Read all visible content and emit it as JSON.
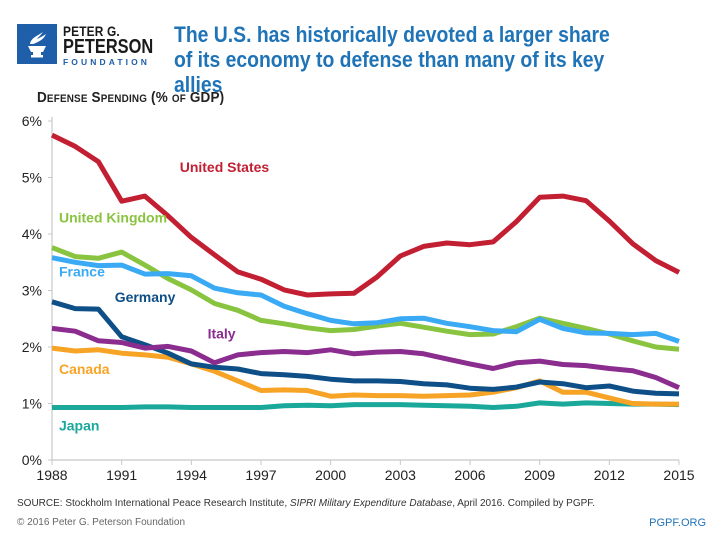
{
  "header": {
    "logo": {
      "line1": "PETER G.",
      "line2": "PETERSON",
      "line3": "FOUNDATION",
      "icon": "torch-icon",
      "color": "#1f5ea8"
    },
    "title": "The U.S. has historically devoted a larger share of its economy to defense than many of its key allies",
    "title_color": "#1f73b7"
  },
  "chart_data": {
    "type": "line",
    "title": "Defense Spending (% of GDP)",
    "xlabel": "",
    "ylabel": "",
    "ylim": [
      0,
      6
    ],
    "xlim": [
      1988,
      2015
    ],
    "yticks": [
      0,
      1,
      2,
      3,
      4,
      5,
      6
    ],
    "ytick_labels": [
      "0%",
      "1%",
      "2%",
      "3%",
      "4%",
      "5%",
      "6%"
    ],
    "xticks": [
      1988,
      1991,
      1994,
      1997,
      2000,
      2003,
      2006,
      2009,
      2012,
      2015
    ],
    "xtick_labels": [
      "1988",
      "1991",
      "1994",
      "1997",
      "2000",
      "2003",
      "2006",
      "2009",
      "2012",
      "2015"
    ],
    "grid": false,
    "legend": "inline-labels",
    "x": [
      1988,
      1989,
      1990,
      1991,
      1992,
      1993,
      1994,
      1995,
      1996,
      1997,
      1998,
      1999,
      2000,
      2001,
      2002,
      2003,
      2004,
      2005,
      2006,
      2007,
      2008,
      2009,
      2010,
      2011,
      2012,
      2013,
      2014,
      2015
    ],
    "series": [
      {
        "name": "Japan",
        "color": "#1aa89a",
        "values": [
          0.93,
          0.93,
          0.93,
          0.93,
          0.94,
          0.94,
          0.93,
          0.93,
          0.93,
          0.93,
          0.96,
          0.97,
          0.96,
          0.98,
          0.98,
          0.98,
          0.97,
          0.96,
          0.95,
          0.93,
          0.95,
          1.01,
          0.99,
          1.01,
          1.0,
          0.99,
          0.99,
          0.98
        ]
      },
      {
        "name": "Canada",
        "color": "#f7a325",
        "values": [
          1.98,
          1.93,
          1.95,
          1.89,
          1.86,
          1.82,
          1.7,
          1.57,
          1.4,
          1.23,
          1.24,
          1.23,
          1.13,
          1.15,
          1.14,
          1.14,
          1.13,
          1.14,
          1.15,
          1.2,
          1.28,
          1.4,
          1.2,
          1.2,
          1.1,
          1.0,
          0.99,
          0.99
        ]
      },
      {
        "name": "Germany",
        "color": "#0d4f86",
        "values": [
          2.8,
          2.68,
          2.67,
          2.18,
          2.04,
          1.89,
          1.7,
          1.64,
          1.61,
          1.53,
          1.51,
          1.48,
          1.43,
          1.4,
          1.4,
          1.39,
          1.35,
          1.33,
          1.27,
          1.25,
          1.29,
          1.38,
          1.35,
          1.28,
          1.31,
          1.22,
          1.18,
          1.17
        ]
      },
      {
        "name": "Italy",
        "color": "#8b2c8f",
        "values": [
          2.33,
          2.28,
          2.11,
          2.08,
          1.98,
          2.01,
          1.93,
          1.72,
          1.86,
          1.9,
          1.92,
          1.9,
          1.95,
          1.88,
          1.91,
          1.92,
          1.88,
          1.79,
          1.7,
          1.62,
          1.72,
          1.75,
          1.69,
          1.67,
          1.62,
          1.58,
          1.46,
          1.28
        ]
      },
      {
        "name": "United Kingdom",
        "color": "#89c440",
        "values": [
          3.76,
          3.6,
          3.57,
          3.68,
          3.45,
          3.21,
          3.01,
          2.77,
          2.65,
          2.47,
          2.41,
          2.34,
          2.29,
          2.31,
          2.37,
          2.42,
          2.35,
          2.28,
          2.22,
          2.23,
          2.36,
          2.51,
          2.42,
          2.33,
          2.23,
          2.11,
          2.0,
          1.96
        ]
      },
      {
        "name": "France",
        "color": "#3aaaf5",
        "values": [
          3.58,
          3.5,
          3.44,
          3.45,
          3.29,
          3.3,
          3.26,
          3.04,
          2.96,
          2.92,
          2.72,
          2.59,
          2.47,
          2.41,
          2.43,
          2.5,
          2.51,
          2.42,
          2.36,
          2.29,
          2.27,
          2.49,
          2.33,
          2.25,
          2.24,
          2.22,
          2.24,
          2.1
        ]
      },
      {
        "name": "United States",
        "color": "#c21f32",
        "values": [
          5.75,
          5.55,
          5.28,
          4.58,
          4.67,
          4.32,
          3.94,
          3.63,
          3.33,
          3.2,
          3.01,
          2.92,
          2.94,
          2.95,
          3.24,
          3.61,
          3.78,
          3.84,
          3.81,
          3.86,
          4.22,
          4.65,
          4.67,
          4.59,
          4.23,
          3.83,
          3.53,
          3.32
        ]
      }
    ],
    "labels": [
      {
        "series": "United States",
        "text": "United States",
        "x": 1993.5,
        "y": 5.1
      },
      {
        "series": "United Kingdom",
        "text": "United Kingdom",
        "x": 1988.3,
        "y": 4.2
      },
      {
        "series": "France",
        "text": "France",
        "x": 1988.3,
        "y": 3.25
      },
      {
        "series": "Germany",
        "text": "Germany",
        "x": 1990.7,
        "y": 2.8
      },
      {
        "series": "Italy",
        "text": "Italy",
        "x": 1994.7,
        "y": 2.15
      },
      {
        "series": "Canada",
        "text": "Canada",
        "x": 1988.3,
        "y": 1.52
      },
      {
        "series": "Japan",
        "text": "Japan",
        "x": 1988.3,
        "y": 0.52
      }
    ]
  },
  "footer": {
    "source_prefix": "SOURCE: Stockholm International Peace Research Institute, ",
    "source_italic": "SIPRI Military Expenditure Database",
    "source_suffix": ", April 2016. Compiled by PGPF.",
    "copyright": "© 2016 Peter G. Peterson Foundation",
    "site": "PGPF.ORG"
  }
}
